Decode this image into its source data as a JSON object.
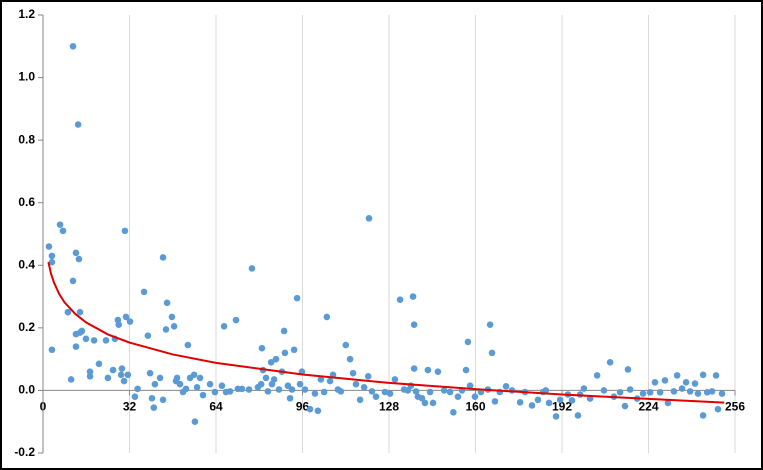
{
  "chart_data": {
    "type": "scatter",
    "xlim": [
      0,
      256
    ],
    "xticks": [
      0,
      32,
      64,
      96,
      128,
      160,
      192,
      224,
      256
    ],
    "ylim": [
      -0.2,
      1.2
    ],
    "yticks": [
      -0.2,
      {
        "value": 0,
        "label": "0.0"
      },
      0.2,
      0.4,
      0.6,
      0.8,
      {
        "value": 1,
        "label": "1.0"
      },
      1.2
    ],
    "grid": "x",
    "series": [
      {
        "type": "scatter",
        "color": "#5b9bd5",
        "x": [
          2.2,
          3.3,
          3.3,
          3.3,
          6.3,
          7.4,
          9.2,
          10.4,
          11.1,
          11.1,
          12.2,
          12.2,
          12.2,
          13,
          13.3,
          13.7,
          13.7,
          14.4,
          15.9,
          17.4,
          17.4,
          18.9,
          20.7,
          23.3,
          24,
          25.9,
          26.6,
          27.7,
          28,
          28.9,
          29.2,
          30,
          30.3,
          30.7,
          31.4,
          32.2,
          34,
          35,
          37.4,
          38.8,
          39.6,
          40.3,
          41,
          41.4,
          43.3,
          44.4,
          44.4,
          45.5,
          45.9,
          47.7,
          48.5,
          49.2,
          49.6,
          50.7,
          51.8,
          52.9,
          53.6,
          54.4,
          55.9,
          56.2,
          57,
          58.1,
          59.2,
          61.8,
          63.6,
          66.2,
          67,
          67.7,
          69.2,
          71.4,
          72.1,
          73.6,
          76.2,
          77.3,
          79.5,
          80.7,
          81,
          81.4,
          82.5,
          83.2,
          84.4,
          84.7,
          85.5,
          86.2,
          87.3,
          88.4,
          89.2,
          89.5,
          90.6,
          91.4,
          92.1,
          92.9,
          94,
          95.1,
          95.8,
          96.9,
          98.8,
          100.6,
          101.7,
          102.8,
          104,
          105,
          106.2,
          107.3,
          109.1,
          110.2,
          112,
          113.6,
          114.7,
          115.8,
          117.3,
          118.8,
          120.3,
          120.6,
          121.7,
          123.2,
          126.5,
          128.4,
          130.2,
          132.1,
          133.6,
          135,
          136.1,
          136.9,
          137.3,
          137.3,
          138,
          138.7,
          140.2,
          141.3,
          142.4,
          143.2,
          144.3,
          146.1,
          148.4,
          150.6,
          151.8,
          153.5,
          155,
          156.5,
          157.2,
          158,
          159.8,
          162,
          164.6,
          165.4,
          166.1,
          167.2,
          169,
          171.3,
          173.5,
          176.5,
          178.3,
          180.9,
          183.1,
          185,
          186,
          187.2,
          189.8,
          191.3,
          194.2,
          195.7,
          197.9,
          198.7,
          200.1,
          202.4,
          205,
          207.5,
          209.8,
          211.2,
          213.5,
          215.3,
          216.4,
          217.2,
          219.8,
          222,
          224.6,
          226.4,
          228.3,
          230.1,
          231.2,
          233.4,
          234.6,
          236.4,
          237.9,
          239.4,
          241.2,
          242.3,
          244.2,
          244.2,
          245.7,
          247.5,
          249,
          249.7,
          251.2
        ],
        "values": [
          0.46,
          0.43,
          0.41,
          0.13,
          0.53,
          0.51,
          0.25,
          0.035,
          1.1,
          0.35,
          0.44,
          0.18,
          0.14,
          0.85,
          0.42,
          0.25,
          0.185,
          0.19,
          0.165,
          0.06,
          0.045,
          0.16,
          0.085,
          0.16,
          0.04,
          0.065,
          0.165,
          0.225,
          0.21,
          0.05,
          0.07,
          0.03,
          0.51,
          0.235,
          0.05,
          0.22,
          -0.02,
          0.005,
          0.315,
          0.175,
          0.055,
          -0.025,
          -0.055,
          0.02,
          0.04,
          0.425,
          -0.03,
          0.195,
          0.28,
          0.235,
          0.205,
          0.03,
          0.04,
          0.02,
          -0.005,
          0.005,
          0.145,
          0.04,
          0.05,
          -0.1,
          0.01,
          0.04,
          -0.015,
          0.02,
          -0.005,
          0.015,
          0.205,
          -0.005,
          -0.003,
          0.225,
          0.005,
          0.005,
          0.003,
          0.39,
          0.01,
          0.02,
          0.135,
          0.065,
          0.04,
          -0.003,
          0.09,
          0.02,
          0.035,
          0.1,
          0.003,
          0.06,
          0.19,
          0.12,
          0.015,
          -0.025,
          0.003,
          0.13,
          0.295,
          0.02,
          0.06,
          0.003,
          -0.06,
          -0.01,
          -0.065,
          0.035,
          -0.005,
          0.235,
          0.03,
          0.05,
          0.003,
          -0.003,
          0.145,
          0.1,
          0.055,
          0.02,
          -0.03,
          0.01,
          0.045,
          0.55,
          -0.003,
          -0.02,
          -0.005,
          -0.01,
          0.035,
          0.29,
          0.003,
          0,
          0.015,
          0.3,
          0.21,
          0.07,
          -0.003,
          -0.02,
          -0.025,
          -0.04,
          0.065,
          -0.005,
          -0.04,
          0.06,
          0,
          -0.005,
          -0.07,
          -0.02,
          0,
          0.065,
          0.155,
          0.015,
          -0.02,
          -0.005,
          0.003,
          0.21,
          0.12,
          -0.035,
          -0.005,
          0.013,
          0,
          -0.038,
          -0.005,
          -0.048,
          -0.03,
          -0.005,
          0,
          -0.04,
          -0.083,
          -0.03,
          -0.013,
          -0.032,
          -0.08,
          -0.013,
          0.006,
          -0.026,
          0.048,
          0,
          0.09,
          -0.02,
          -0.006,
          -0.05,
          0.067,
          0.003,
          -0.026,
          -0.01,
          -0.006,
          0.026,
          -0.006,
          0.032,
          -0.04,
          -0.003,
          0.048,
          0.006,
          0.026,
          -0.003,
          0.022,
          -0.01,
          -0.08,
          0.05,
          -0.006,
          -0.003,
          0.048,
          -0.06,
          -0.01
        ]
      },
      {
        "type": "line",
        "color": "#e00000",
        "x": [
          2,
          3,
          4,
          6,
          8,
          12,
          16,
          24,
          32,
          48,
          64,
          96,
          128,
          160,
          192,
          224,
          252
        ],
        "values": [
          0.41,
          0.372,
          0.346,
          0.308,
          0.281,
          0.244,
          0.217,
          0.179,
          0.153,
          0.115,
          0.088,
          0.051,
          0.024,
          0.004,
          -0.013,
          -0.027,
          -0.039
        ]
      }
    ]
  }
}
